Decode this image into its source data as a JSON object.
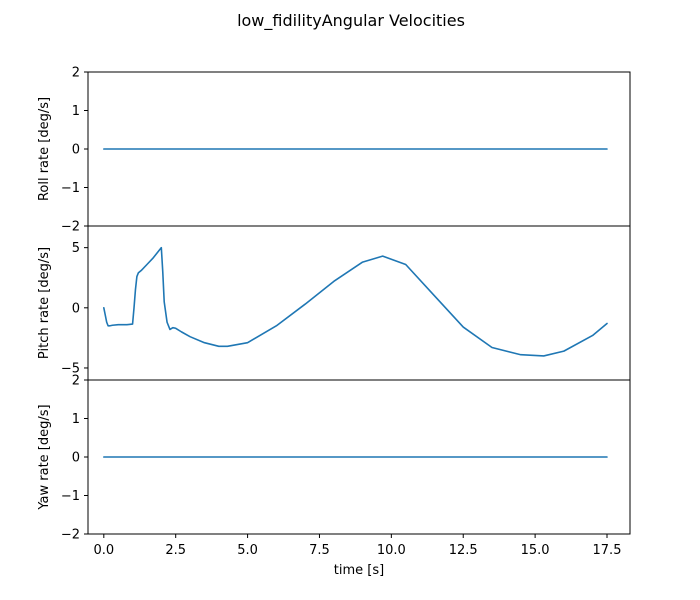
{
  "chart_data": {
    "type": "line",
    "title": "low_fidilityAngular Velocities",
    "xlabel": "time [s]",
    "xlim": [
      -0.55,
      18.3
    ],
    "xticks": [
      0.0,
      2.5,
      5.0,
      7.5,
      10.0,
      12.5,
      15.0,
      17.5
    ],
    "xtick_labels": [
      "0.0",
      "2.5",
      "5.0",
      "7.5",
      "10.0",
      "12.5",
      "15.0",
      "17.5"
    ],
    "line_color": "#1f77b4",
    "subplots": [
      {
        "ylabel": "Roll rate [deg/s]",
        "ylim": [
          -2,
          2
        ],
        "yticks": [
          -2,
          -1,
          0,
          1,
          2
        ],
        "ytick_labels": [
          "−2",
          "−1",
          "0",
          "1",
          "2"
        ],
        "series": [
          {
            "x": [
              0.0,
              17.5
            ],
            "y": [
              0.0,
              0.0
            ]
          }
        ]
      },
      {
        "ylabel": "Pitch rate [deg/s]",
        "ylim": [
          -6.0,
          6.8
        ],
        "yticks": [
          -5,
          0,
          5
        ],
        "ytick_labels": [
          "−5",
          "0",
          "5"
        ],
        "series": [
          {
            "x": [
              0.0,
              0.05,
              0.1,
              0.15,
              0.2,
              0.3,
              0.5,
              0.8,
              1.0,
              1.05,
              1.1,
              1.15,
              1.2,
              1.3,
              1.5,
              1.7,
              1.9,
              2.0,
              2.05,
              2.1,
              2.2,
              2.3,
              2.4,
              2.5,
              2.7,
              3.0,
              3.5,
              4.0,
              4.3,
              5.0,
              6.0,
              7.0,
              8.0,
              9.0,
              9.7,
              10.5,
              11.5,
              12.5,
              13.5,
              14.5,
              15.3,
              16.0,
              17.0,
              17.5
            ],
            "y": [
              0.0,
              -0.6,
              -1.2,
              -1.5,
              -1.5,
              -1.45,
              -1.4,
              -1.4,
              -1.35,
              0.0,
              1.5,
              2.6,
              2.9,
              3.1,
              3.6,
              4.1,
              4.7,
              5.0,
              3.0,
              0.5,
              -1.2,
              -1.8,
              -1.65,
              -1.7,
              -2.0,
              -2.4,
              -2.9,
              -3.2,
              -3.2,
              -2.9,
              -1.5,
              0.3,
              2.2,
              3.8,
              4.3,
              3.6,
              1.0,
              -1.6,
              -3.3,
              -3.9,
              -4.0,
              -3.6,
              -2.3,
              -1.3
            ]
          }
        ]
      },
      {
        "ylabel": "Yaw rate [deg/s]",
        "ylim": [
          -2,
          2
        ],
        "yticks": [
          -2,
          -1,
          0,
          1,
          2
        ],
        "ytick_labels": [
          "−2",
          "−1",
          "0",
          "1",
          "2"
        ],
        "series": [
          {
            "x": [
              0.0,
              17.5
            ],
            "y": [
              0.0,
              0.0
            ]
          }
        ]
      }
    ]
  }
}
